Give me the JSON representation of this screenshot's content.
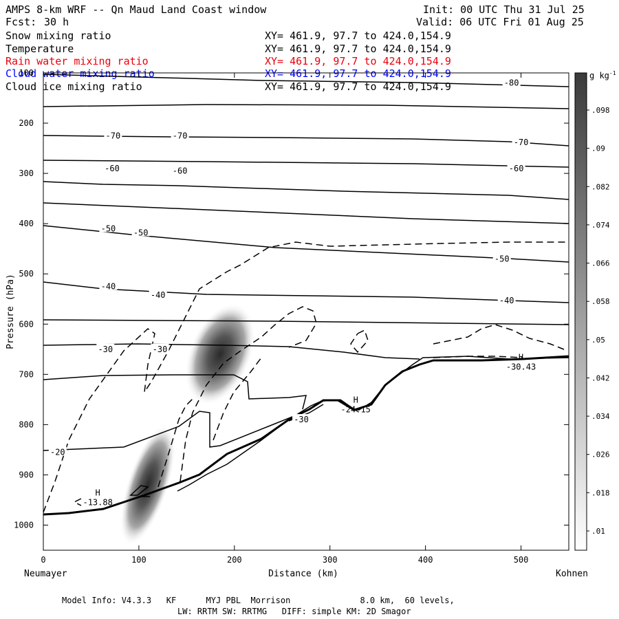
{
  "header": {
    "title": "AMPS 8-km WRF -- Qn Maud Land Coast window",
    "fcst_label": "Fcst:",
    "fcst_value": "30 h",
    "init": "Init: 00 UTC Thu 31 Jul 25",
    "valid": "Valid: 06 UTC Fri 01 Aug 25"
  },
  "fields": [
    {
      "name": "Snow mixing ratio",
      "xy": "XY= 461.9, 97.7 to 424.0,154.9",
      "color": "#000000"
    },
    {
      "name": "Temperature",
      "xy": "XY= 461.9, 97.7 to 424.0,154.9",
      "color": "#000000"
    },
    {
      "name": "Rain water mixing ratio",
      "xy": "XY= 461.9, 97.7 to 424.0,154.9",
      "color": "#e8000b"
    },
    {
      "name": "Cloud water mixing ratio",
      "xy": "XY= 461.9, 97.7 to 424.0,154.9",
      "color": "#0000ff"
    },
    {
      "name": "Cloud ice mixing ratio",
      "xy": "XY= 461.9, 97.7 to 424.0,154.9",
      "color": "#000000"
    }
  ],
  "axes": {
    "ylabel": "Pressure (hPa)",
    "xlabel": "Distance (km)",
    "left_station": "Neumayer",
    "right_station": "Kohnen"
  },
  "colorbar": {
    "unit_label": "g kg",
    "unit_exp": "-1",
    "ticks": [
      ".01",
      ".018",
      ".026",
      ".034",
      ".042",
      ".05",
      ".058",
      ".066",
      ".074",
      ".082",
      ".09",
      ".098"
    ]
  },
  "footer": {
    "line1": "Model Info: V4.3.3   KF      MYJ PBL  Morrison              8.0 km,  60 levels,",
    "line2": "LW: RRTM SW: RRTMG   DIFF: simple KM: 2D Smagor"
  },
  "chart_data": {
    "type": "cross-section",
    "x_range": [
      0,
      550
    ],
    "y_range_hpa": [
      1050,
      100
    ],
    "y_scale": "linear (pressure decreasing upward)",
    "x_ticks": [
      0,
      100,
      200,
      300,
      400,
      500
    ],
    "y_ticks": [
      1000,
      900,
      800,
      700,
      600,
      500,
      400,
      300,
      200,
      100
    ],
    "temperature_contour_labels": [
      {
        "text": "-80",
        "x": 490,
        "p": 120
      },
      {
        "text": "-70",
        "x": 73,
        "p": 225
      },
      {
        "text": "-70",
        "x": 143,
        "p": 225
      },
      {
        "text": "-70",
        "x": 500,
        "p": 238
      },
      {
        "text": "-60",
        "x": 72,
        "p": 290
      },
      {
        "text": "-60",
        "x": 143,
        "p": 295
      },
      {
        "text": "-60",
        "x": 495,
        "p": 290
      },
      {
        "text": "-50",
        "x": 68,
        "p": 410
      },
      {
        "text": "-50",
        "x": 102,
        "p": 418
      },
      {
        "text": "-50",
        "x": 480,
        "p": 470
      },
      {
        "text": "-40",
        "x": 68,
        "p": 525
      },
      {
        "text": "-40",
        "x": 120,
        "p": 542
      },
      {
        "text": "-40",
        "x": 485,
        "p": 553
      },
      {
        "text": "-30",
        "x": 65,
        "p": 650
      },
      {
        "text": "-30",
        "x": 122,
        "p": 650
      },
      {
        "text": "-30",
        "x": 270,
        "p": 790
      },
      {
        "text": "-20",
        "x": 15,
        "p": 855
      }
    ],
    "highs": [
      {
        "mark": "H",
        "value": "-13.88",
        "x": 57,
        "p": 955
      },
      {
        "mark": "H",
        "value": "-24.15",
        "x": 327,
        "p": 770
      },
      {
        "mark": "H",
        "value": "-30.43",
        "x": 500,
        "p": 685
      }
    ],
    "snow_shading_max_gkg": 0.098,
    "shading_maxima": [
      {
        "x": 182,
        "p": 670
      },
      {
        "x": 107,
        "p": 885
      }
    ]
  }
}
